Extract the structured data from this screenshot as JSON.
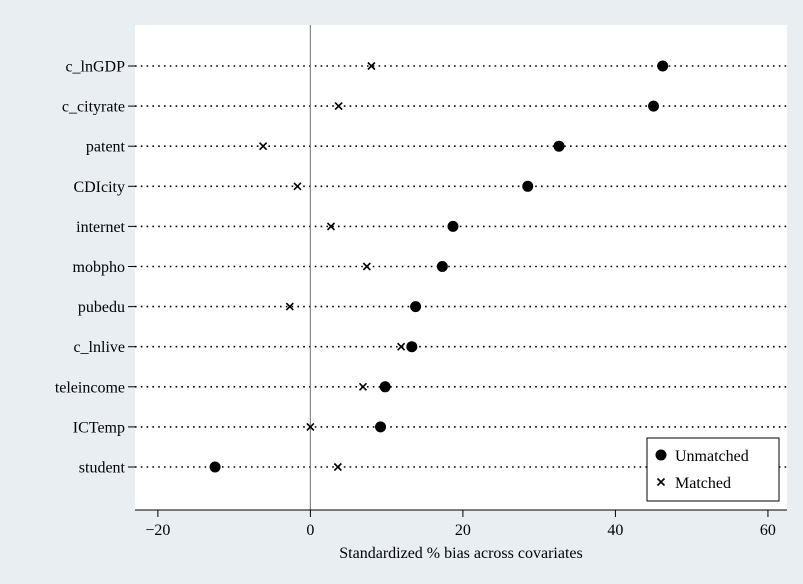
{
  "chart_data": {
    "type": "scatter",
    "title": "",
    "xlabel": "Standardized % bias across covariates",
    "ylabel": "",
    "xlim": [
      -23,
      62.5
    ],
    "xticks": [
      -20,
      0,
      20,
      40,
      60
    ],
    "grid": "dotted horizontal guide line per variable",
    "reference_line_x": 0,
    "legend_position": "bottom-right",
    "categories": [
      "c_lnGDP",
      "c_cityrate",
      "patent",
      "CDIcity",
      "internet",
      "mobpho",
      "pubedu",
      "c_lnlive",
      "teleincome",
      "ICTemp",
      "student"
    ],
    "series": [
      {
        "name": "Unmatched",
        "marker": "circle",
        "values": [
          46.2,
          45.0,
          32.6,
          28.5,
          18.7,
          17.3,
          13.8,
          13.3,
          9.8,
          9.2,
          -12.5
        ]
      },
      {
        "name": "Matched",
        "marker": "x",
        "values": [
          8.0,
          3.7,
          -6.2,
          -1.7,
          2.7,
          7.4,
          -2.7,
          11.9,
          6.9,
          0.0,
          3.6
        ]
      }
    ]
  },
  "colors": {
    "background": "#e8eef2",
    "plot": "#ffffff",
    "marker": "#000000",
    "zero_line": "#888888"
  }
}
